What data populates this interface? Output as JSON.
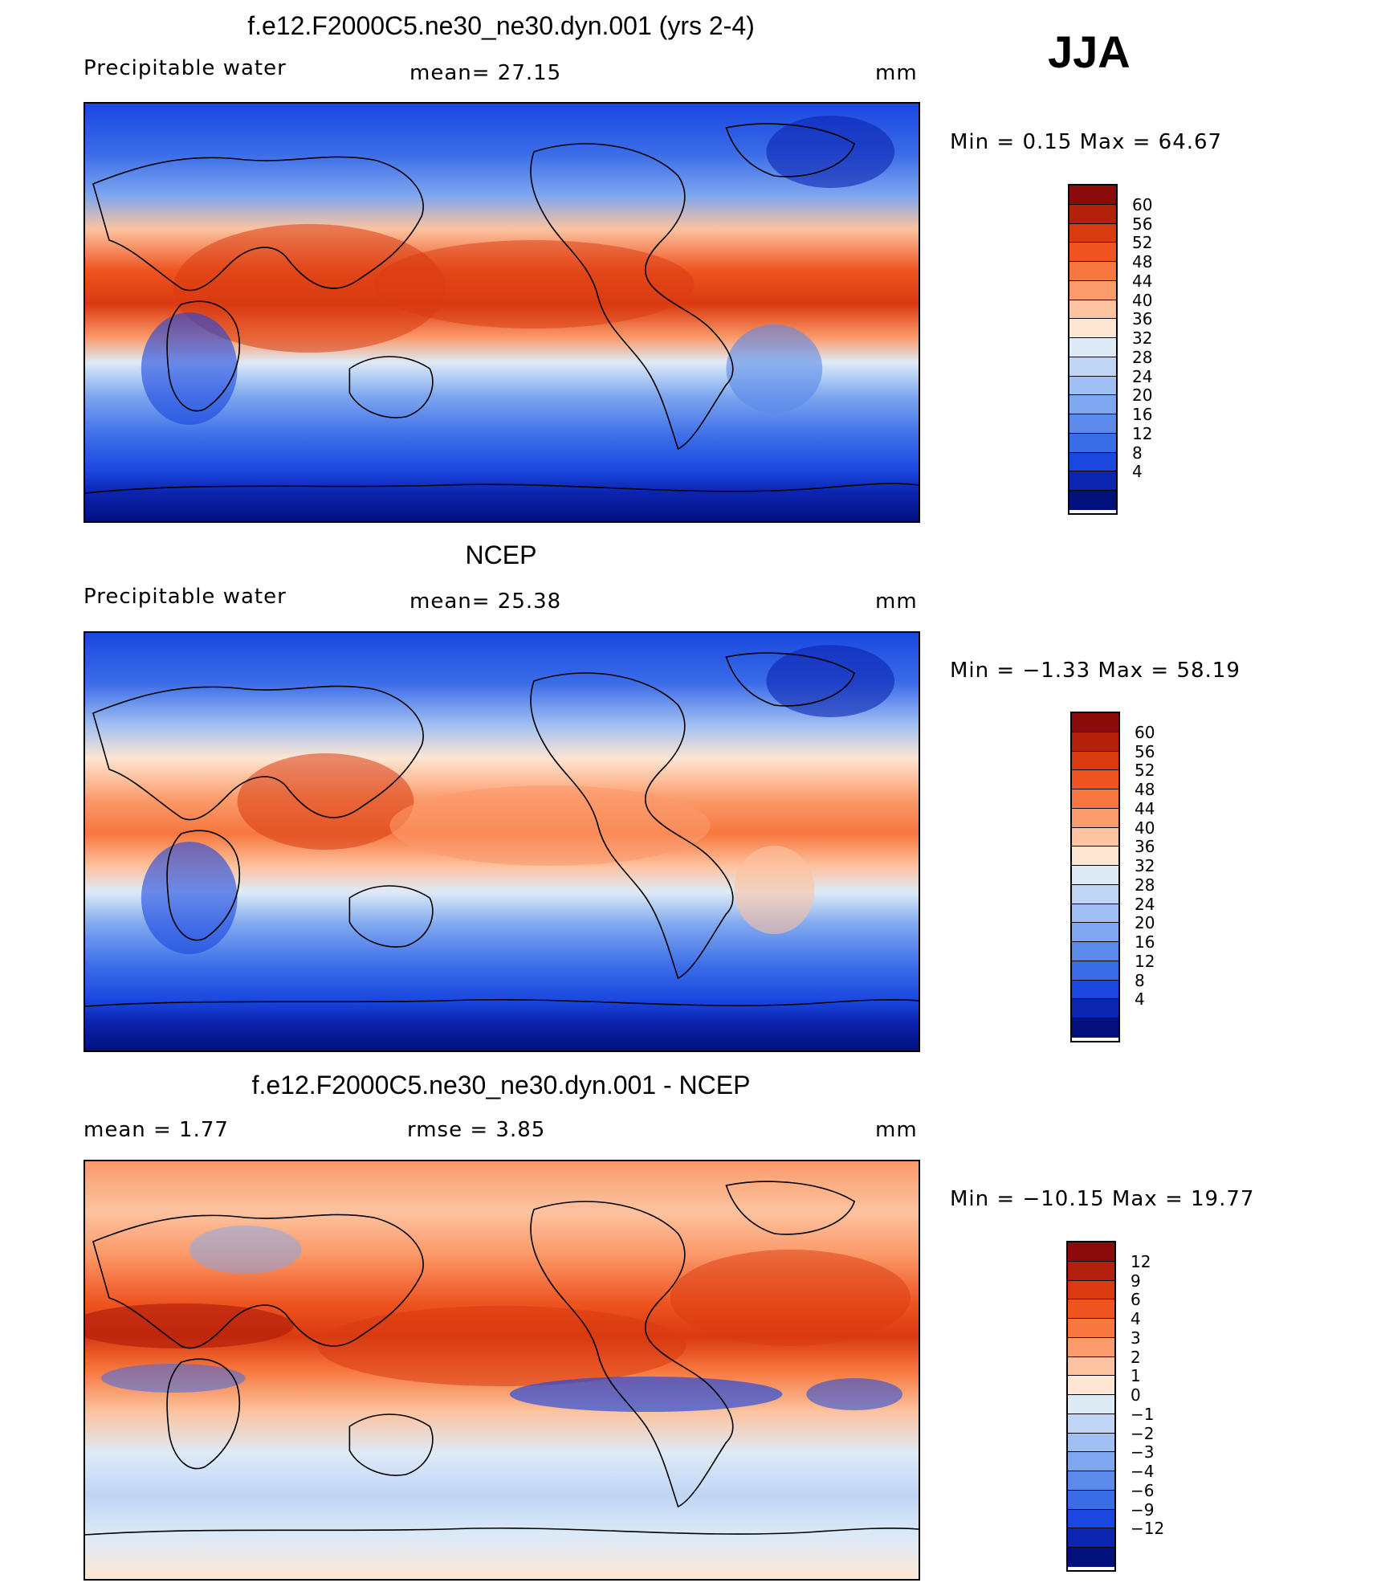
{
  "season": "JJA",
  "palette_abs": [
    "#8b0a0a",
    "#b3200c",
    "#d93a10",
    "#ef5420",
    "#f7773e",
    "#fb9a6a",
    "#fcc3a0",
    "#fde6d2",
    "#ddebf7",
    "#c0d5f6",
    "#a0bff2",
    "#7ea7ef",
    "#5a8bea",
    "#3b6ce8",
    "#1a47e0",
    "#0b25b0",
    "#02107e"
  ],
  "palette_diff": [
    "#8b0a0a",
    "#b3200c",
    "#d93a10",
    "#ef5420",
    "#f7773e",
    "#fb9a6a",
    "#fcc3a0",
    "#fde6d2",
    "#ddebf7",
    "#c0d5f6",
    "#a0bff2",
    "#7ea7ef",
    "#5a8bea",
    "#3b6ce8",
    "#1a47e0",
    "#0b25b0",
    "#02107e"
  ],
  "panels": [
    {
      "title": "f.e12.F2000C5.ne30_ne30.dyn.001 (yrs 2-4)",
      "left_label": "Precipitable  water",
      "mid_label": "mean=   27.15",
      "units": "mm",
      "min_max": "Min  =     0.15  Max  =    64.67",
      "levels": [
        "60",
        "56",
        "52",
        "48",
        "44",
        "40",
        "36",
        "32",
        "28",
        "24",
        "20",
        "16",
        "12",
        "8",
        "4"
      ],
      "type": "abs"
    },
    {
      "title": "NCEP",
      "left_label": "Precipitable  water",
      "mid_label": "mean=   25.38",
      "units": "mm",
      "min_max": "Min  =   −1.33  Max  =    58.19",
      "levels": [
        "60",
        "56",
        "52",
        "48",
        "44",
        "40",
        "36",
        "32",
        "28",
        "24",
        "20",
        "16",
        "12",
        "8",
        "4"
      ],
      "type": "abs"
    },
    {
      "title": "f.e12.F2000C5.ne30_ne30.dyn.001 - NCEP",
      "left_label": "mean  =      1.77",
      "mid_label": "rmse  =      3.85",
      "units": "mm",
      "min_max": "Min  =  −10.15  Max  =    19.77",
      "levels": [
        "12",
        "9",
        "6",
        "4",
        "3",
        "2",
        "1",
        "0",
        "−1",
        "−2",
        "−3",
        "−4",
        "−6",
        "−9",
        "−12"
      ],
      "type": "diff"
    }
  ]
}
